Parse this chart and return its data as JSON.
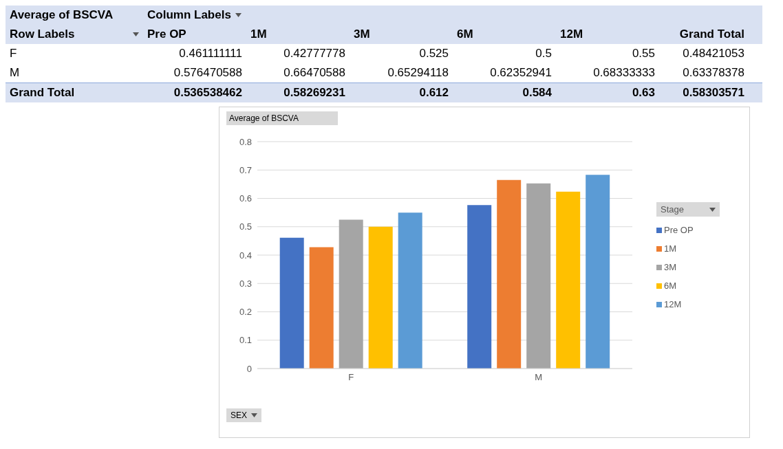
{
  "chart_data": [
    {
      "type": "other",
      "title": "Average of BSCVA",
      "annotations": [
        "Column Labels",
        "Row Labels",
        "Pre OP",
        "1M",
        "3M",
        "6M",
        "12M",
        "Grand Total",
        "F",
        "0.461111111",
        "0.42777778",
        "0.525",
        "0.5",
        "0.55",
        "0.48421053",
        "M",
        "0.576470588",
        "0.66470588",
        "0.65294118",
        "0.62352941",
        "0.68333333",
        "0.63378378",
        "Grand Total",
        "0.536538462",
        "0.58269231",
        "0.612",
        "0.584",
        "0.63",
        "0.58303571"
      ]
    },
    {
      "type": "bar",
      "title": "Average of BSCVA",
      "xlabel": "SEX",
      "legend_title": "Stage",
      "categories": [
        "F",
        "M"
      ],
      "series": [
        {
          "name": "Pre OP",
          "color": "#4472c4",
          "values": [
            0.461111111,
            0.576470588
          ]
        },
        {
          "name": "1M",
          "color": "#ed7d31",
          "values": [
            0.42777778,
            0.66470588
          ]
        },
        {
          "name": "3M",
          "color": "#a5a5a5",
          "values": [
            0.525,
            0.65294118
          ]
        },
        {
          "name": "6M",
          "color": "#ffc000",
          "values": [
            0.5,
            0.62352941
          ]
        },
        {
          "name": "12M",
          "color": "#5b9bd5",
          "values": [
            0.55,
            0.68333333
          ]
        }
      ],
      "ylim": [
        0,
        0.8
      ],
      "yticks": [
        0,
        0.1,
        0.2,
        0.3,
        0.4,
        0.5,
        0.6,
        0.7,
        0.8
      ],
      "grid": "y",
      "legend": "right"
    }
  ]
}
